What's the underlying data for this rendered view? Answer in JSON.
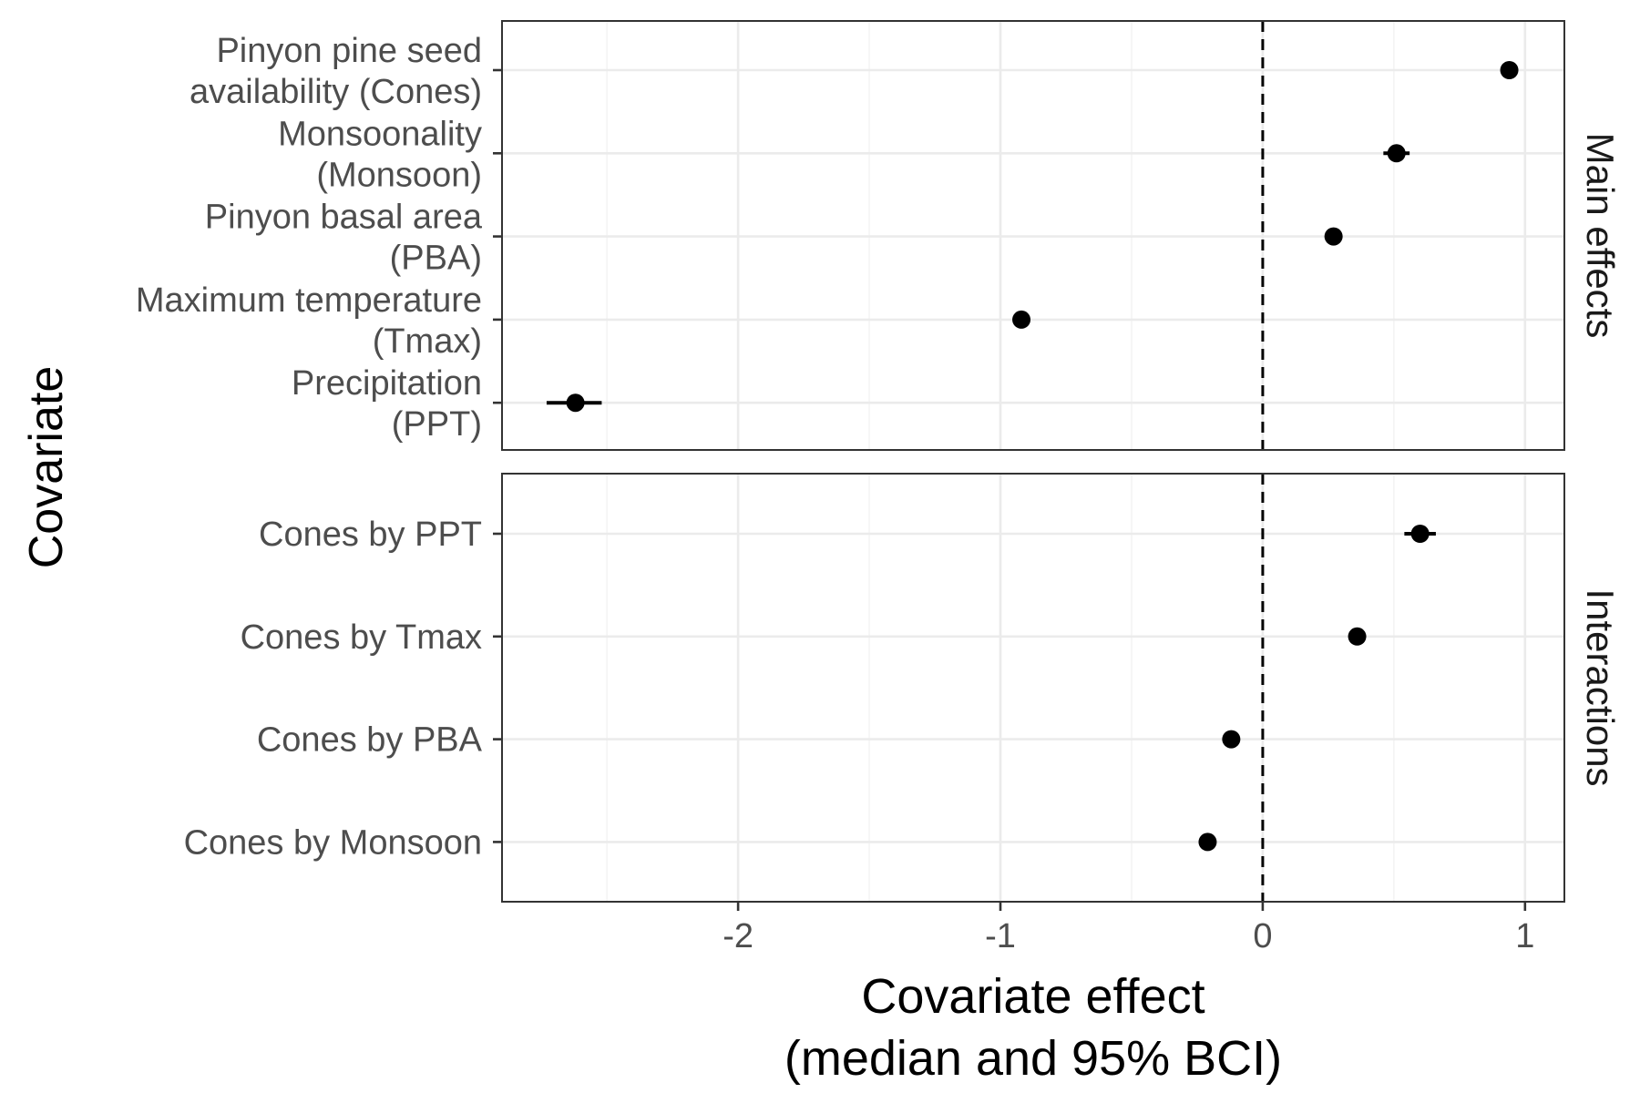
{
  "chart_data": {
    "type": "scatter",
    "subtype": "faceted forest plot (point estimates with 95% interval bars)",
    "x_axis": {
      "title_lines": [
        "Covariate effect",
        "(median and 95% BCI)"
      ],
      "range": [
        -2.9,
        1.15
      ],
      "ticks": [
        -2,
        -1,
        0,
        1
      ],
      "tick_labels": [
        "-2",
        "-1",
        "0",
        "1"
      ],
      "minor_gridlines": [
        -2.5,
        -1.5,
        -0.5,
        0.5
      ]
    },
    "y_axis": {
      "title": "Covariate"
    },
    "reference_line": {
      "x": 0,
      "style": "dashed"
    },
    "grid": true,
    "facets": [
      {
        "strip_label": "Main effects",
        "categories": [
          {
            "label_lines": [
              "Pinyon pine seed",
              "availability (Cones)"
            ],
            "median": 0.94,
            "lower": 0.92,
            "upper": 0.96
          },
          {
            "label_lines": [
              "Monsoonality",
              "(Monsoon)"
            ],
            "median": 0.51,
            "lower": 0.46,
            "upper": 0.56
          },
          {
            "label_lines": [
              "Pinyon basal area",
              "(PBA)"
            ],
            "median": 0.27,
            "lower": 0.25,
            "upper": 0.29
          },
          {
            "label_lines": [
              "Maximum temperature",
              "(Tmax)"
            ],
            "median": -0.92,
            "lower": -0.95,
            "upper": -0.89
          },
          {
            "label_lines": [
              "Precipitation",
              "(PPT)"
            ],
            "median": -2.62,
            "lower": -2.73,
            "upper": -2.52
          }
        ]
      },
      {
        "strip_label": "Interactions",
        "categories": [
          {
            "label_lines": [
              "Cones by PPT"
            ],
            "median": 0.6,
            "lower": 0.54,
            "upper": 0.66
          },
          {
            "label_lines": [
              "Cones by Tmax"
            ],
            "median": 0.36,
            "lower": 0.34,
            "upper": 0.38
          },
          {
            "label_lines": [
              "Cones by PBA"
            ],
            "median": -0.12,
            "lower": -0.14,
            "upper": -0.1
          },
          {
            "label_lines": [
              "Cones by Monsoon"
            ],
            "median": -0.21,
            "lower": -0.23,
            "upper": -0.19
          }
        ]
      }
    ],
    "colors": {
      "points": "#000000",
      "panel_border": "#333333",
      "grid_major": "#ebebeb",
      "grid_minor": "#f4f4f4",
      "tick_text": "#4d4d4d"
    }
  }
}
